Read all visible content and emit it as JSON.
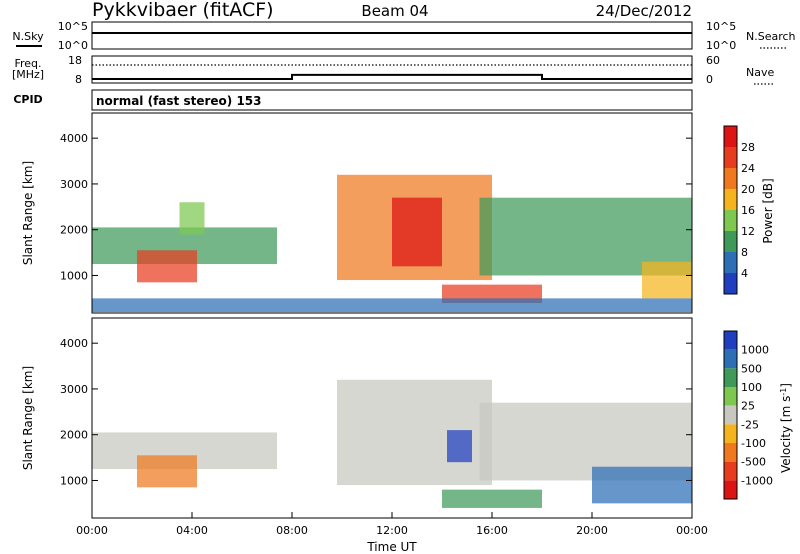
{
  "header": {
    "title": "Pykkvibaer (fitACF)",
    "beam": "Beam 04",
    "date": "24/Dec/2012"
  },
  "left_labels": {
    "nsky": "N.Sky",
    "freq": "Freq.",
    "freq_unit": "[MHz]",
    "cpid": "CPID"
  },
  "right_labels": {
    "nsearch": "N.Search",
    "nave": "Nave"
  },
  "top_axes": {
    "nsky_ticks": [
      "10^5",
      "10^0"
    ],
    "nsearch_ticks": [
      "10^5",
      "10^0"
    ],
    "freq_ticks": [
      "18",
      "8"
    ],
    "nave_ticks": [
      "60",
      "0"
    ]
  },
  "cpid_text": "normal (fast stereo) 153",
  "chart_data": [
    {
      "type": "line",
      "name": "nsky-nsearch",
      "x_range_hours": [
        0,
        24
      ],
      "nsky_log10_level": 3.6,
      "nsearch_log10_level": 3.6
    },
    {
      "type": "line",
      "name": "frequency-nave",
      "freq_mhz": [
        {
          "x": 0,
          "y": 9.5
        },
        {
          "x": 8,
          "y": 9.5
        },
        {
          "x": 8,
          "y": 11.0
        },
        {
          "x": 18,
          "y": 11.0
        },
        {
          "x": 18,
          "y": 9.5
        },
        {
          "x": 24,
          "y": 9.5
        }
      ],
      "nave": 40
    },
    {
      "type": "heatmap",
      "name": "power",
      "xlabel": "",
      "ylabel": "Slant Range [km]",
      "yticks": [
        1000,
        2000,
        3000,
        4000
      ],
      "ylim": [
        180,
        4550
      ],
      "colorbar_label": "Power [dB]",
      "colorbar_ticks": [
        4,
        8,
        12,
        16,
        20,
        24,
        28
      ],
      "colorbar_colors": [
        "#1f3fbf",
        "#2d6fb5",
        "#3f9a5a",
        "#7ec850",
        "#f5b41e",
        "#f0781e",
        "#e83c1e",
        "#dc1414"
      ],
      "regions": [
        {
          "t": [
            0.0,
            7.4
          ],
          "r": [
            1250,
            2050
          ],
          "level": 0.35
        },
        {
          "t": [
            1.8,
            4.2
          ],
          "r": [
            850,
            1550
          ],
          "level": 0.85
        },
        {
          "t": [
            3.5,
            4.5
          ],
          "r": [
            1900,
            2600
          ],
          "level": 0.5
        },
        {
          "t": [
            9.8,
            16.0
          ],
          "r": [
            900,
            3200
          ],
          "level": 0.75
        },
        {
          "t": [
            12.0,
            14.0
          ],
          "r": [
            1200,
            2700
          ],
          "level": 0.95
        },
        {
          "t": [
            14.0,
            18.0
          ],
          "r": [
            400,
            800
          ],
          "level": 0.9
        },
        {
          "t": [
            15.5,
            24.0
          ],
          "r": [
            1000,
            2700
          ],
          "level": 0.35
        },
        {
          "t": [
            22.0,
            24.0
          ],
          "r": [
            500,
            1300
          ],
          "level": 0.6
        },
        {
          "t": [
            0.0,
            24.0
          ],
          "r": [
            200,
            500
          ],
          "level": 0.1
        }
      ]
    },
    {
      "type": "heatmap",
      "name": "velocity",
      "xlabel": "Time UT",
      "ylabel": "Slant Range [km]",
      "x_range_hours": [
        0,
        24
      ],
      "xticks": [
        "00:00",
        "04:00",
        "08:00",
        "12:00",
        "16:00",
        "20:00",
        "00:00"
      ],
      "yticks": [
        1000,
        2000,
        3000,
        4000
      ],
      "ylim": [
        180,
        4550
      ],
      "colorbar_label": "Velocity [m s^-1]",
      "colorbar_ticks": [
        "1000",
        "500",
        "100",
        "25",
        "-25",
        "-100",
        "-500",
        "-1000"
      ],
      "colorbar_colors": [
        "#1f3fbf",
        "#2d6fb5",
        "#3f9a5a",
        "#7ec850",
        "#c8c8c0",
        "#f5b41e",
        "#f0781e",
        "#e83c1e",
        "#dc1414"
      ],
      "regions": [
        {
          "t": [
            0.0,
            7.4
          ],
          "r": [
            1250,
            2050
          ],
          "level": 0.55
        },
        {
          "t": [
            1.8,
            4.2
          ],
          "r": [
            850,
            1550
          ],
          "level": 0.3
        },
        {
          "t": [
            9.8,
            16.0
          ],
          "r": [
            900,
            3200
          ],
          "level": 0.5
        },
        {
          "t": [
            14.2,
            15.2
          ],
          "r": [
            1400,
            2100
          ],
          "level": 1.0
        },
        {
          "t": [
            15.5,
            24.0
          ],
          "r": [
            1000,
            2700
          ],
          "level": 0.5
        },
        {
          "t": [
            14.0,
            18.0
          ],
          "r": [
            400,
            800
          ],
          "level": 0.8
        },
        {
          "t": [
            20.0,
            24.0
          ],
          "r": [
            500,
            1300
          ],
          "level": 0.82
        }
      ]
    }
  ],
  "time_xlabel": "Time UT"
}
